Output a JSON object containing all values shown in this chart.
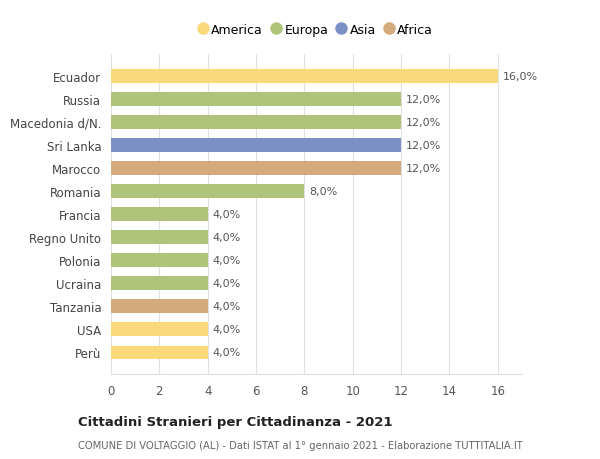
{
  "categories": [
    "Perù",
    "USA",
    "Tanzania",
    "Ucraina",
    "Polonia",
    "Regno Unito",
    "Francia",
    "Romania",
    "Marocco",
    "Sri Lanka",
    "Macedonia d/N.",
    "Russia",
    "Ecuador"
  ],
  "values": [
    4.0,
    4.0,
    4.0,
    4.0,
    4.0,
    4.0,
    4.0,
    8.0,
    12.0,
    12.0,
    12.0,
    12.0,
    16.0
  ],
  "colors": [
    "#fad97a",
    "#fad97a",
    "#d4a97c",
    "#afc47a",
    "#afc47a",
    "#afc47a",
    "#afc47a",
    "#afc47a",
    "#d4a97c",
    "#7b90c4",
    "#afc47a",
    "#afc47a",
    "#fad97a"
  ],
  "labels": [
    "4,0%",
    "4,0%",
    "4,0%",
    "4,0%",
    "4,0%",
    "4,0%",
    "4,0%",
    "8,0%",
    "12,0%",
    "12,0%",
    "12,0%",
    "12,0%",
    "16,0%"
  ],
  "legend_labels": [
    "America",
    "Europa",
    "Asia",
    "Africa"
  ],
  "legend_colors": [
    "#fad97a",
    "#afc47a",
    "#7b90c4",
    "#d4a97c"
  ],
  "xlim": [
    0,
    17.0
  ],
  "xticks": [
    0,
    2,
    4,
    6,
    8,
    10,
    12,
    14,
    16
  ],
  "title": "Cittadini Stranieri per Cittadinanza - 2021",
  "subtitle": "COMUNE DI VOLTAGGIO (AL) - Dati ISTAT al 1° gennaio 2021 - Elaborazione TUTTITALIA.IT",
  "background_color": "#ffffff",
  "grid_color": "#e0e0e0"
}
